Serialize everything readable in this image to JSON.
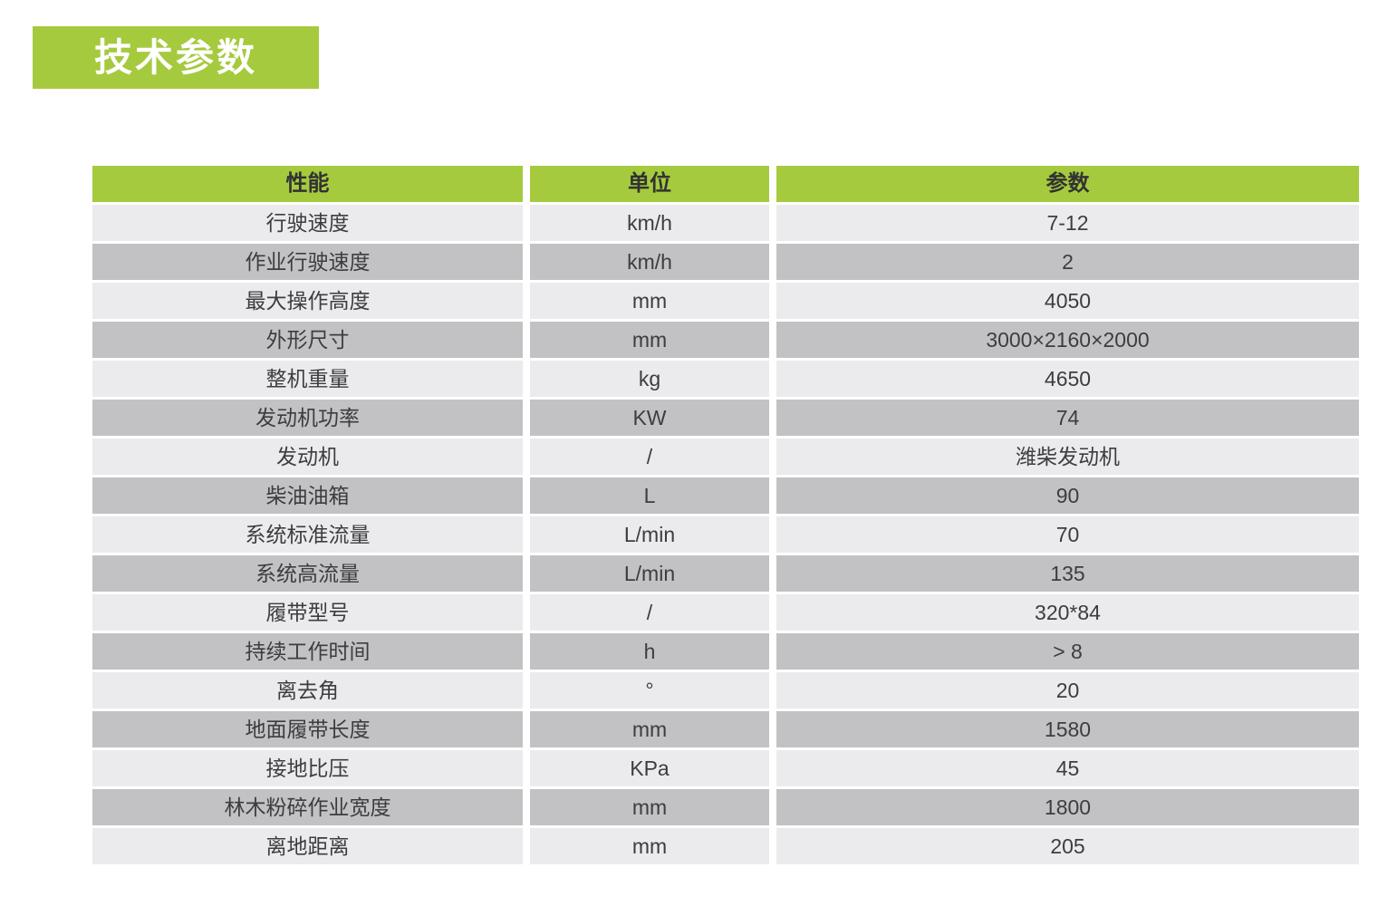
{
  "colors": {
    "accent_green": "#a5ca3e",
    "row_light": "#ebebed",
    "row_dark": "#c2c2c4",
    "text_dark": "#3d3d3f"
  },
  "title": "技术参数",
  "table": {
    "headers": {
      "performance": "性能",
      "unit": "单位",
      "parameter": "参数"
    },
    "rows": [
      {
        "name": "行驶速度",
        "unit": "km/h",
        "value": "7-12"
      },
      {
        "name": "作业行驶速度",
        "unit": "km/h",
        "value": "2"
      },
      {
        "name": "最大操作高度",
        "unit": "mm",
        "value": "4050"
      },
      {
        "name": "外形尺寸",
        "unit": "mm",
        "value": "3000×2160×2000"
      },
      {
        "name": "整机重量",
        "unit": "kg",
        "value": "4650"
      },
      {
        "name": "发动机功率",
        "unit": "KW",
        "value": "74"
      },
      {
        "name": "发动机",
        "unit": "/",
        "value": "潍柴发动机"
      },
      {
        "name": "柴油油箱",
        "unit": "L",
        "value": "90"
      },
      {
        "name": "系统标准流量",
        "unit": "L/min",
        "value": "70"
      },
      {
        "name": "系统高流量",
        "unit": "L/min",
        "value": "135"
      },
      {
        "name": "履带型号",
        "unit": "/",
        "value": "320*84"
      },
      {
        "name": "持续工作时间",
        "unit": "h",
        "value": "> 8"
      },
      {
        "name": "离去角",
        "unit": "°",
        "value": "20"
      },
      {
        "name": "地面履带长度",
        "unit": "mm",
        "value": "1580"
      },
      {
        "name": "接地比压",
        "unit": "KPa",
        "value": "45"
      },
      {
        "name": "林木粉碎作业宽度",
        "unit": "mm",
        "value": "1800"
      },
      {
        "name": "离地距离",
        "unit": "mm",
        "value": "205"
      }
    ]
  }
}
